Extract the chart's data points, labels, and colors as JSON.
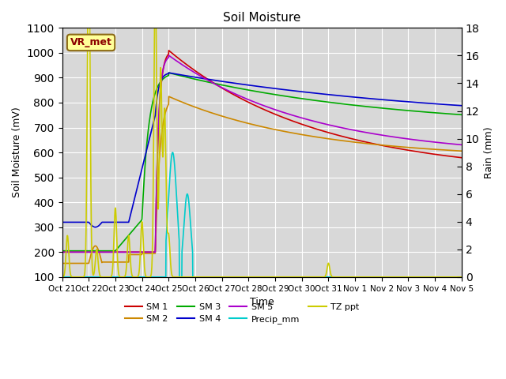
{
  "title": "Soil Moisture",
  "ylabel_left": "Soil Moisture (mV)",
  "ylabel_right": "Rain (mm)",
  "xlabel": "Time",
  "ylim_left": [
    100,
    1100
  ],
  "ylim_right": [
    0,
    18
  ],
  "background_color": "#d8d8d8",
  "annotation_text": "VR_met",
  "annotation_box_color": "#ffff99",
  "annotation_text_color": "#8b0000",
  "series_colors": {
    "SM1": "#cc0000",
    "SM2": "#cc8800",
    "SM3": "#00aa00",
    "SM4": "#0000cc",
    "SM5": "#aa00cc",
    "Precip": "#00cccc",
    "TZ": "#cccc00"
  },
  "x_tick_labels": [
    "Oct 21",
    "Oct 22",
    "Oct 23",
    "Oct 24",
    "Oct 25",
    "Oct 26",
    "Oct 27",
    "Oct 28",
    "Oct 29",
    "Oct 30",
    "Oct 31",
    "Nov 1",
    "Nov 2",
    "Nov 3",
    "Nov 4",
    "Nov 5"
  ],
  "n_ticks": 16
}
